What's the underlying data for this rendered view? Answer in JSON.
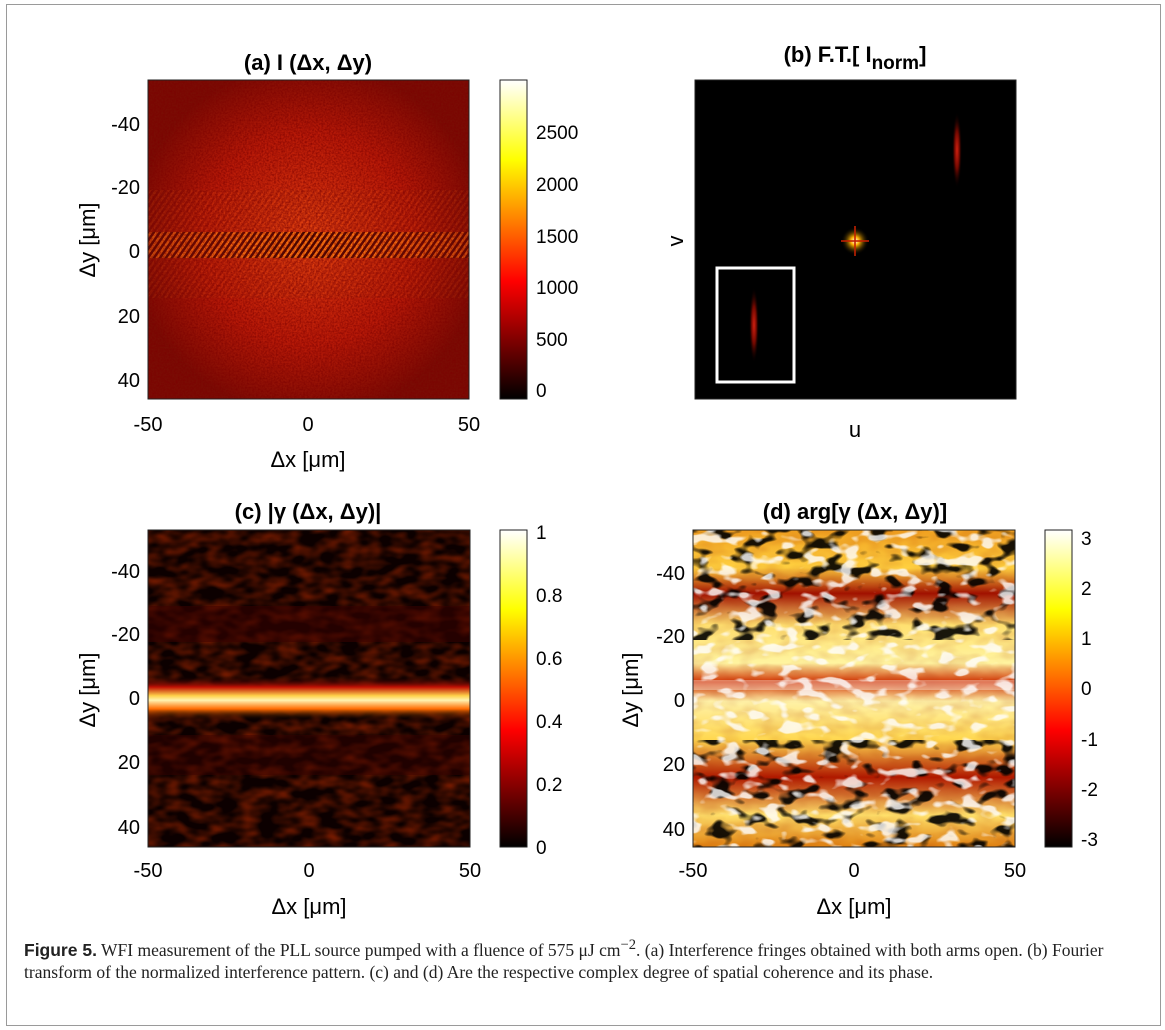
{
  "panels": {
    "a": {
      "title": "(a) I (Δx, Δy)",
      "xlabel": "Δx [μm]",
      "ylabel": "Δy [μm]",
      "xticks": [
        "-50",
        "0",
        "50"
      ],
      "yticks": [
        "-40",
        "-20",
        "0",
        "20",
        "40"
      ],
      "colorbar_ticks": [
        "2500",
        "2000",
        "1500",
        "1000",
        "500",
        "0"
      ]
    },
    "b": {
      "title_main": "(b) F.T.[ I",
      "title_sub": "norm",
      "title_end": "]",
      "xlabel": "u",
      "ylabel": "v"
    },
    "c": {
      "title": "(c) |γ (Δx, Δy)|",
      "xlabel": "Δx [μm]",
      "ylabel": "Δy [μm]",
      "xticks": [
        "-50",
        "0",
        "50"
      ],
      "yticks": [
        "-40",
        "-20",
        "0",
        "20",
        "40"
      ],
      "colorbar_ticks": [
        "1",
        "0.8",
        "0.6",
        "0.4",
        "0.2",
        "0"
      ]
    },
    "d": {
      "title": "(d) arg[γ (Δx, Δy)]",
      "xlabel": "Δx [μm]",
      "ylabel": "Δy [μm]",
      "xticks": [
        "-50",
        "0",
        "50"
      ],
      "yticks": [
        "-40",
        "-20",
        "0",
        "20",
        "40"
      ],
      "colorbar_ticks": [
        "3",
        "2",
        "1",
        "0",
        "-1",
        "-2",
        "-3"
      ]
    }
  },
  "chart_data": [
    {
      "type": "heatmap",
      "title": "(a) I (Δx, Δy)",
      "xlabel": "Δx [μm]",
      "ylabel": "Δy [μm]",
      "xlim": [
        -50,
        50
      ],
      "ylim": [
        -55,
        45
      ],
      "y_axis_direction": "reversed",
      "colormap": "hot",
      "clim": [
        0,
        3000
      ],
      "description_values": {
        "background_level": 600,
        "fringe_peak": 1800,
        "fringe_center_dy": 0
      }
    },
    {
      "type": "heatmap",
      "title": "(b) F.T.[ Inorm]",
      "xlabel": "u",
      "ylabel": "v",
      "colormap": "hot",
      "features": [
        "central peak",
        "side peak upper-right",
        "side peak lower-left (boxed)"
      ]
    },
    {
      "type": "heatmap",
      "title": "(c) |γ (Δx, Δy)|",
      "xlabel": "Δx [μm]",
      "ylabel": "Δy [μm]",
      "xlim": [
        -50,
        50
      ],
      "ylim": [
        -55,
        45
      ],
      "y_axis_direction": "reversed",
      "colormap": "hot",
      "clim": [
        0,
        1
      ],
      "description_values": {
        "band_center_dy": 0,
        "band_peak": 1.0,
        "background": 0.05
      }
    },
    {
      "type": "heatmap",
      "title": "(d) arg[γ (Δx, Δy)]",
      "xlabel": "Δx [μm]",
      "ylabel": "Δy [μm]",
      "xlim": [
        -50,
        50
      ],
      "ylim": [
        -55,
        45
      ],
      "y_axis_direction": "reversed",
      "colormap": "hot",
      "clim": [
        -3.14,
        3.14
      ]
    }
  ],
  "caption": {
    "label": "Figure 5.",
    "text_before_unit": "WFI measurement of the PLL source pumped with a fluence of 575 ",
    "unit": "μJ cm",
    "exponent": "−2",
    "text_after": ". (a) Interference fringes obtained with both arms open. (b) Fourier transform of the normalized interference pattern. (c) and (d) Are the respective complex degree of spatial coherence and its phase."
  },
  "colors": {
    "hot_low": "#000000",
    "hot_mid": "#ff0000",
    "hot_high": "#ffffff",
    "box": "#ffffff"
  }
}
